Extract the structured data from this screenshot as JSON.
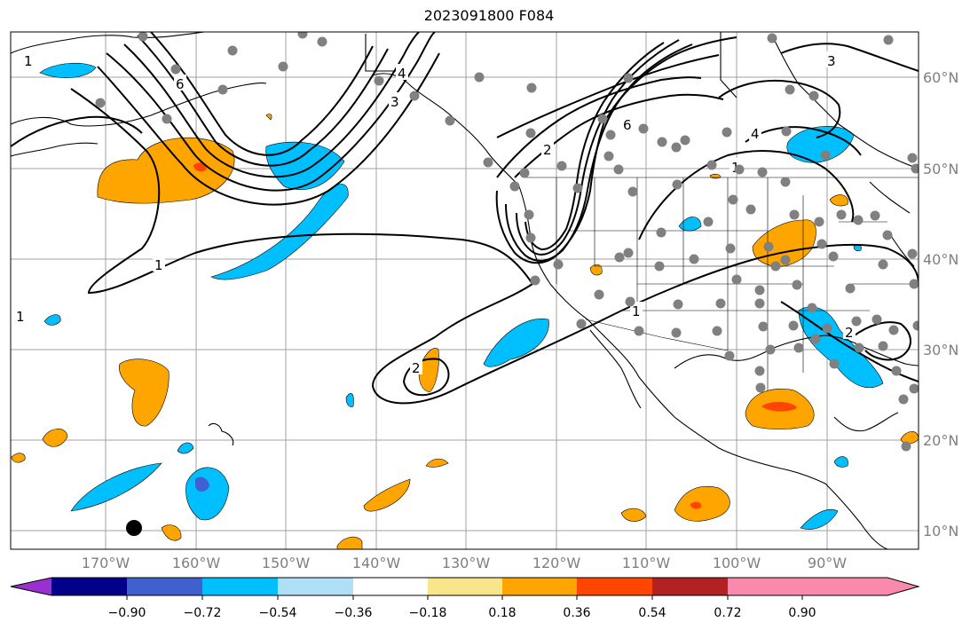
{
  "title": "2023091800 F084",
  "map": {
    "lon_labels": [
      "170°W",
      "160°W",
      "150°W",
      "140°W",
      "130°W",
      "120°W",
      "110°W",
      "100°W",
      "90°W"
    ],
    "lat_labels": [
      "60°N",
      "50°N",
      "40°N",
      "30°N",
      "20°N",
      "10°N"
    ],
    "contour_labels": [
      "1",
      "1",
      "2",
      "2",
      "3",
      "4",
      "6",
      "6",
      "2",
      "1",
      "1",
      "1",
      "4",
      "3"
    ],
    "colors": {
      "ocean_land_bg": "#ffffff",
      "contour": "#000000",
      "grid": "#a0a0a0",
      "station_dot": "#808080"
    }
  },
  "colorbar": {
    "colors": [
      "#9b30d0",
      "#00008b",
      "#4060d0",
      "#00bfff",
      "#b0e0f8",
      "#ffffff",
      "#f9e58a",
      "#ffa500",
      "#ff4500",
      "#b22222",
      "#f98aac"
    ],
    "tick_labels": [
      "−0.90",
      "−0.72",
      "−0.54",
      "−0.36",
      "−0.18",
      "0.18",
      "0.36",
      "0.54",
      "0.72",
      "0.90"
    ]
  }
}
